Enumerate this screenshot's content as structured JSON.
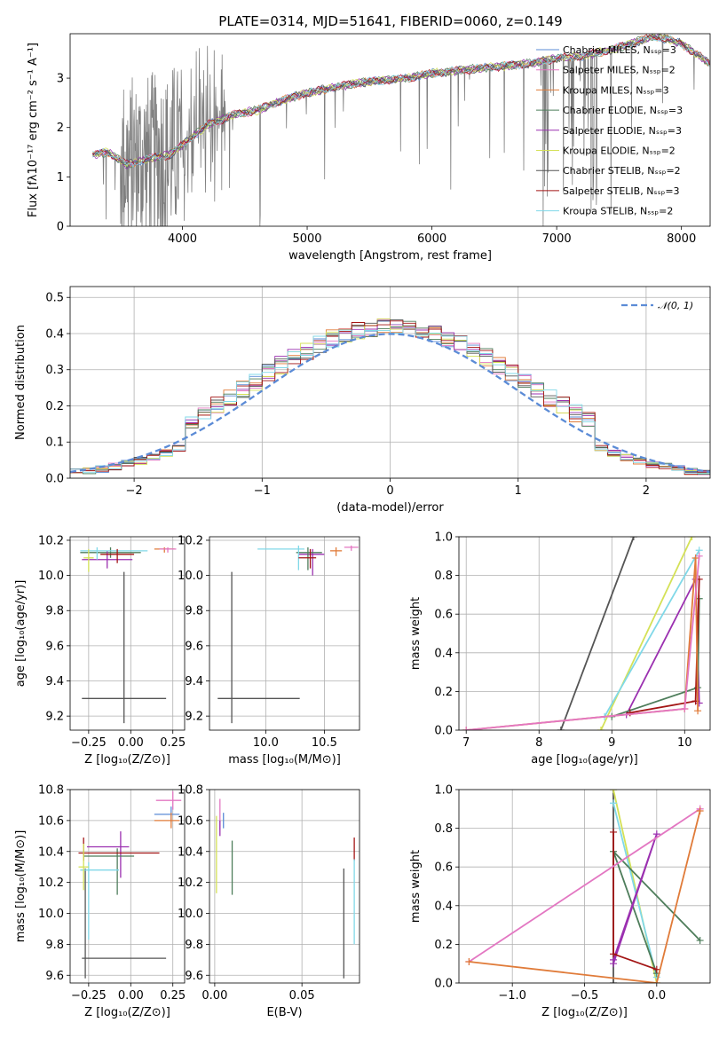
{
  "title": "PLATE=0314, MJD=51641, FIBERID=0060, z=0.149",
  "colors": {
    "chabrier_miles": "#5b8bd6",
    "salpeter_miles": "#e377c2",
    "kroupa_miles": "#e07b39",
    "chabrier_elodie": "#4e7d5b",
    "salpeter_elodie": "#9b30b0",
    "kroupa_elodie": "#d4e157",
    "chabrier_stelib": "#555555",
    "salpeter_stelib": "#a31515",
    "kroupa_stelib": "#80d8e8",
    "data": "#808080",
    "gaussian": "#5b8bd6"
  },
  "chart_data": [
    {
      "id": "spectrum",
      "type": "line",
      "xlabel": "wavelength [Angstrom, rest frame]",
      "ylabel": "Flux [fλ10⁻¹⁷ erg cm⁻² s⁻¹ A⁻¹]",
      "xlim": [
        3100,
        8230
      ],
      "ylim": [
        0,
        3.9
      ],
      "xticks": [
        "4000",
        "5000",
        "6000",
        "7000",
        "8000"
      ],
      "yticks": [
        "0",
        "1",
        "2",
        "3"
      ],
      "legend_position": "top-right",
      "legend": [
        "Chabrier MILES, Nₛₛₚ=3",
        "Salpeter MILES, Nₛₛₚ=2",
        "Kroupa MILES, Nₛₛₚ=3",
        "Chabrier ELODIE, Nₛₛₚ=3",
        "Salpeter ELODIE, Nₛₛₚ=3",
        "Kroupa ELODIE, Nₛₛₚ=2",
        "Chabrier STELIB, Nₛₛₚ=2",
        "Salpeter STELIB, Nₛₛₚ=3",
        "Kroupa STELIB, Nₛₛₚ=2"
      ],
      "continuum": [
        [
          3280,
          1.45
        ],
        [
          3400,
          1.5
        ],
        [
          3550,
          1.25
        ],
        [
          3700,
          1.35
        ],
        [
          3900,
          1.45
        ],
        [
          4000,
          1.65
        ],
        [
          4200,
          2.05
        ],
        [
          4400,
          2.25
        ],
        [
          4600,
          2.35
        ],
        [
          4800,
          2.55
        ],
        [
          5000,
          2.7
        ],
        [
          5200,
          2.8
        ],
        [
          5400,
          2.9
        ],
        [
          5600,
          2.95
        ],
        [
          5800,
          3.0
        ],
        [
          6000,
          3.1
        ],
        [
          6200,
          3.15
        ],
        [
          6400,
          3.2
        ],
        [
          6600,
          3.25
        ],
        [
          6800,
          3.3
        ],
        [
          7000,
          3.4
        ],
        [
          7200,
          3.45
        ],
        [
          7400,
          3.55
        ],
        [
          7600,
          3.7
        ],
        [
          7800,
          3.85
        ],
        [
          8000,
          3.7
        ],
        [
          8230,
          3.3
        ]
      ]
    },
    {
      "id": "residuals",
      "type": "line",
      "xlabel": "(data-model)/error",
      "ylabel": "Normed distribution",
      "xlim": [
        -2.5,
        2.5
      ],
      "ylim": [
        0,
        0.53
      ],
      "xticks": [
        "−2",
        "−1",
        "0",
        "1",
        "2"
      ],
      "yticks": [
        "0.0",
        "0.1",
        "0.2",
        "0.3",
        "0.4",
        "0.5"
      ],
      "legend_position": "top-right",
      "legend": [
        "𝒩(0, 1)"
      ],
      "series": [
        {
          "name": "𝒩(0, 1)",
          "style": "dashed",
          "function": "standard normal pdf"
        }
      ]
    },
    {
      "id": "age_vs_Z",
      "type": "scatter",
      "xlabel": "Z [log₁₀(Z/Z⊙)]",
      "ylabel": "age  [log₁₀(age/yr)]",
      "xlim": [
        -0.36,
        0.32
      ],
      "ylim": [
        9.12,
        10.22
      ],
      "xticks": [
        "−0.25",
        "0.00",
        "0.25"
      ],
      "yticks": [
        "9.2",
        "9.4",
        "9.6",
        "9.8",
        "10.0",
        "10.2"
      ],
      "points": [
        {
          "x": -0.04,
          "y": 9.3,
          "xerr": [
            0.25,
            0.25
          ],
          "yerr": [
            0.14,
            0.72
          ],
          "color": "chabrier_stelib"
        },
        {
          "x": 0.2,
          "y": 10.15,
          "xerr": [
            0.06,
            0.06
          ],
          "yerr": [
            0.02,
            0.01
          ],
          "color": "kroupa_miles"
        },
        {
          "x": 0.22,
          "y": 10.15,
          "xerr": [
            0.05,
            0.05
          ],
          "yerr": [
            0.02,
            0.01
          ],
          "color": "salpeter_miles"
        },
        {
          "x": -0.12,
          "y": 10.13,
          "xerr": [
            0.18,
            0.18
          ],
          "yerr": [
            0.03,
            0.03
          ],
          "color": "chabrier_elodie"
        },
        {
          "x": -0.14,
          "y": 10.09,
          "xerr": [
            0.15,
            0.15
          ],
          "yerr": [
            0.05,
            0.05
          ],
          "color": "salpeter_elodie"
        },
        {
          "x": -0.2,
          "y": 10.14,
          "xerr": [
            0.1,
            0.3
          ],
          "yerr": [
            0.05,
            0.02
          ],
          "color": "kroupa_stelib"
        },
        {
          "x": -0.25,
          "y": 10.1,
          "xerr": [
            0.03,
            0.03
          ],
          "yerr": [
            0.08,
            0.05
          ],
          "color": "kroupa_elodie"
        },
        {
          "x": -0.08,
          "y": 10.12,
          "xerr": [
            0.1,
            0.1
          ],
          "yerr": [
            0.05,
            0.03
          ],
          "color": "salpeter_stelib"
        }
      ]
    },
    {
      "id": "age_vs_mass",
      "type": "scatter",
      "xlabel": "mass [log₁₀(M/M⊙)]",
      "ylabel": "",
      "xlim": [
        9.52,
        10.8
      ],
      "ylim": [
        9.12,
        10.22
      ],
      "xticks": [
        "10.0",
        "10.5"
      ],
      "yticks": [
        "9.2",
        "9.4",
        "9.6",
        "9.8",
        "10.0",
        "10.2"
      ],
      "points": [
        {
          "x": 9.71,
          "y": 9.3,
          "xerr": [
            0.12,
            0.58
          ],
          "yerr": [
            0.14,
            0.72
          ],
          "color": "chabrier_stelib"
        },
        {
          "x": 10.73,
          "y": 10.16,
          "xerr": [
            0.06,
            0.06
          ],
          "yerr": [
            0.02,
            0.01
          ],
          "color": "salpeter_miles"
        },
        {
          "x": 10.6,
          "y": 10.14,
          "xerr": [
            0.05,
            0.05
          ],
          "yerr": [
            0.03,
            0.02
          ],
          "color": "kroupa_miles"
        },
        {
          "x": 10.4,
          "y": 10.12,
          "xerr": [
            0.12,
            0.1
          ],
          "yerr": [
            0.12,
            0.03
          ],
          "color": "salpeter_elodie"
        },
        {
          "x": 10.36,
          "y": 10.13,
          "xerr": [
            0.1,
            0.12
          ],
          "yerr": [
            0.1,
            0.03
          ],
          "color": "chabrier_elodie"
        },
        {
          "x": 10.28,
          "y": 10.15,
          "xerr": [
            0.35,
            0.05
          ],
          "yerr": [
            0.12,
            0.02
          ],
          "color": "kroupa_stelib"
        },
        {
          "x": 10.38,
          "y": 10.1,
          "xerr": [
            0.1,
            0.05
          ],
          "yerr": [
            0.06,
            0.05
          ],
          "color": "salpeter_stelib"
        }
      ]
    },
    {
      "id": "weight_vs_age",
      "type": "line",
      "xlabel": "age  [log₁₀(age/yr)]",
      "ylabel": "mass weight",
      "xlim": [
        6.9,
        10.35
      ],
      "ylim": [
        0,
        1
      ],
      "xticks": [
        "7",
        "8",
        "9",
        "10"
      ],
      "yticks": [
        "0.0",
        "0.2",
        "0.4",
        "0.6",
        "0.8",
        "1.0"
      ],
      "series": [
        {
          "color": "chabrier_stelib",
          "x": [
            8.3,
            9.3
          ],
          "y": [
            0.0,
            1.0
          ]
        },
        {
          "color": "kroupa_elodie",
          "x": [
            8.85,
            10.1
          ],
          "y": [
            0.0,
            1.0
          ]
        },
        {
          "color": "kroupa_stelib",
          "x": [
            8.9,
            10.2
          ],
          "y": [
            0.07,
            0.93
          ]
        },
        {
          "color": "salpeter_elodie",
          "x": [
            9.2,
            10.15,
            10.2
          ],
          "y": [
            0.08,
            0.78,
            0.14
          ]
        },
        {
          "color": "chabrier_elodie",
          "x": [
            9.0,
            10.18,
            10.2
          ],
          "y": [
            0.07,
            0.22,
            0.68
          ]
        },
        {
          "color": "salpeter_stelib",
          "x": [
            9.25,
            10.15,
            10.2,
            10.15
          ],
          "y": [
            0.09,
            0.15,
            0.78,
            0.15
          ]
        },
        {
          "color": "kroupa_miles",
          "x": [
            7.0,
            10.0,
            10.15,
            10.18
          ],
          "y": [
            0.0,
            0.11,
            0.89,
            0.1
          ]
        },
        {
          "color": "salpeter_miles",
          "x": [
            7.0,
            10.0,
            10.2
          ],
          "y": [
            0.0,
            0.11,
            0.9
          ]
        }
      ]
    },
    {
      "id": "mass_vs_Z",
      "type": "scatter",
      "xlabel": "Z [log₁₀(Z/Z⊙)]",
      "ylabel": "mass [log₁₀(M/M⊙)]",
      "xlim": [
        -0.36,
        0.32
      ],
      "ylim": [
        9.55,
        10.8
      ],
      "xticks": [
        "−0.25",
        "0.00",
        "0.25"
      ],
      "yticks": [
        "9.6",
        "9.8",
        "10.0",
        "10.2",
        "10.4",
        "10.6",
        "10.8"
      ],
      "points": [
        {
          "x": -0.27,
          "y": 9.71,
          "xerr": [
            0.02,
            0.48
          ],
          "yerr": [
            0.13,
            0.58
          ],
          "color": "chabrier_stelib"
        },
        {
          "x": 0.25,
          "y": 10.73,
          "xerr": [
            0.1,
            0.05
          ],
          "yerr": [
            0.06,
            0.06
          ],
          "color": "salpeter_miles"
        },
        {
          "x": 0.24,
          "y": 10.64,
          "xerr": [
            0.1,
            0.05
          ],
          "yerr": [
            0.05,
            0.05
          ],
          "color": "chabrier_miles"
        },
        {
          "x": 0.24,
          "y": 10.6,
          "xerr": [
            0.1,
            0.05
          ],
          "yerr": [
            0.05,
            0.05
          ],
          "color": "kroupa_miles"
        },
        {
          "x": -0.06,
          "y": 10.43,
          "xerr": [
            0.2,
            0.05
          ],
          "yerr": [
            0.2,
            0.1
          ],
          "color": "salpeter_elodie"
        },
        {
          "x": -0.08,
          "y": 10.37,
          "xerr": [
            0.2,
            0.1
          ],
          "yerr": [
            0.25,
            0.05
          ],
          "color": "chabrier_elodie"
        },
        {
          "x": -0.28,
          "y": 10.39,
          "xerr": [
            0.03,
            0.45
          ],
          "yerr": [
            0.05,
            0.1
          ],
          "color": "salpeter_stelib"
        },
        {
          "x": -0.25,
          "y": 10.28,
          "xerr": [
            0.05,
            0.18
          ],
          "yerr": [
            0.45,
            0.05
          ],
          "color": "kroupa_stelib"
        },
        {
          "x": -0.28,
          "y": 10.3,
          "xerr": [
            0.03,
            0.03
          ],
          "yerr": [
            0.15,
            0.15
          ],
          "color": "kroupa_elodie"
        }
      ]
    },
    {
      "id": "mass_vs_EBV",
      "type": "scatter",
      "xlabel": "E(B-V)",
      "ylabel": "",
      "xlim": [
        -0.003,
        0.083
      ],
      "ylim": [
        9.55,
        10.8
      ],
      "xticks": [
        "0.00",
        "0.05"
      ],
      "yticks": [
        "9.6",
        "9.8",
        "10.0",
        "10.2",
        "10.4",
        "10.6",
        "10.8"
      ],
      "points": [
        {
          "x": 0.074,
          "y": 9.71,
          "xerr": [
            0,
            0
          ],
          "yerr": [
            0.13,
            0.58
          ],
          "color": "chabrier_stelib"
        },
        {
          "x": 0.003,
          "y": 10.64,
          "xerr": [
            0,
            0
          ],
          "yerr": [
            0.1,
            0.1
          ],
          "color": "salpeter_miles"
        },
        {
          "x": 0.005,
          "y": 10.6,
          "xerr": [
            0,
            0
          ],
          "yerr": [
            0.05,
            0.05
          ],
          "color": "chabrier_miles"
        },
        {
          "x": 0.001,
          "y": 10.43,
          "xerr": [
            0,
            0
          ],
          "yerr": [
            0.3,
            0.2
          ],
          "color": "kroupa_elodie"
        },
        {
          "x": 0.01,
          "y": 10.37,
          "xerr": [
            0,
            0
          ],
          "yerr": [
            0.25,
            0.1
          ],
          "color": "chabrier_elodie"
        },
        {
          "x": 0.08,
          "y": 10.39,
          "xerr": [
            0,
            0
          ],
          "yerr": [
            0.05,
            0.1
          ],
          "color": "salpeter_stelib"
        },
        {
          "x": 0.08,
          "y": 10.1,
          "xerr": [
            0,
            0
          ],
          "yerr": [
            0.3,
            0.25
          ],
          "color": "kroupa_stelib"
        },
        {
          "x": 0.003,
          "y": 10.55,
          "xerr": [
            0,
            0
          ],
          "yerr": [
            0.05,
            0.05
          ],
          "color": "salpeter_elodie"
        }
      ]
    },
    {
      "id": "weight_vs_Z",
      "type": "line",
      "xlabel": "Z [log₁₀(Z/Z⊙)]",
      "ylabel": "mass weight",
      "xlim": [
        -1.37,
        0.37
      ],
      "ylim": [
        0,
        1
      ],
      "xticks": [
        "−1.0",
        "−0.5",
        "0.0"
      ],
      "yticks": [
        "0.0",
        "0.2",
        "0.4",
        "0.6",
        "0.8",
        "1.0"
      ],
      "series": [
        {
          "color": "chabrier_stelib",
          "x": [
            -0.3,
            -0.3
          ],
          "y": [
            0.0,
            1.0
          ]
        },
        {
          "color": "kroupa_elodie",
          "x": [
            -0.3,
            0.0
          ],
          "y": [
            1.0,
            0.0
          ]
        },
        {
          "color": "kroupa_stelib",
          "x": [
            -0.3,
            0.0
          ],
          "y": [
            0.93,
            0.03
          ]
        },
        {
          "color": "chabrier_elodie",
          "x": [
            0.3,
            -0.3,
            0.0
          ],
          "y": [
            0.22,
            0.68,
            0.05
          ]
        },
        {
          "color": "salpeter_elodie",
          "x": [
            -0.3,
            0.0,
            -0.3
          ],
          "y": [
            0.1,
            0.77,
            0.12
          ]
        },
        {
          "color": "salpeter_stelib",
          "x": [
            -0.3,
            -0.3,
            0.0
          ],
          "y": [
            0.78,
            0.15,
            0.07
          ]
        },
        {
          "color": "salpeter_miles",
          "x": [
            -1.3,
            0.3,
            0.3
          ],
          "y": [
            0.11,
            0.9,
            0.9
          ]
        },
        {
          "color": "kroupa_miles",
          "x": [
            -1.3,
            0.0,
            0.3
          ],
          "y": [
            0.11,
            0.0,
            0.89
          ]
        }
      ]
    }
  ]
}
